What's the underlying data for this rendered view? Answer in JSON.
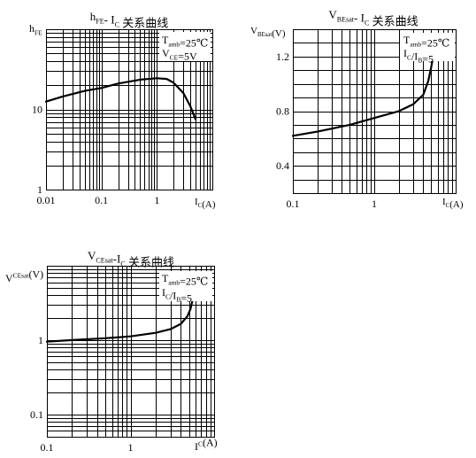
{
  "chart_data": [
    {
      "id": "hfe",
      "type": "line",
      "title_html": "h<sub>FE</sub>- I<sub>C</sub> 关系曲线",
      "title": "hFE- IC 关系曲线",
      "ylabel": "hFE",
      "xlabel": "IC(A)",
      "x_scale": "log",
      "y_scale": "log",
      "xlim": [
        0.01,
        10
      ],
      "ylim": [
        1,
        100
      ],
      "x_ticks": [
        0.01,
        0.1,
        1
      ],
      "x_tick_labels": [
        "0.01",
        "0.1",
        "1"
      ],
      "y_ticks": [
        1,
        10
      ],
      "y_tick_labels": [
        "1",
        "10"
      ],
      "annotations": [
        "Tamb=25℃",
        "VCE=5V"
      ],
      "series": [
        {
          "x": [
            0.01,
            0.02,
            0.05,
            0.1,
            0.2,
            0.5,
            1.0,
            1.5,
            2.0,
            3.0,
            4.0,
            5.0
          ],
          "y": [
            12.5,
            14.5,
            17.0,
            18.5,
            21.0,
            23.5,
            24.5,
            24.0,
            21.5,
            16.0,
            11.0,
            7.5
          ]
        }
      ],
      "grid": true
    },
    {
      "id": "vbesat",
      "type": "line",
      "title": "VBEsat- IC 关系曲线",
      "ylabel": "VBEsat(V)",
      "xlabel": "IC(A)",
      "x_scale": "log",
      "y_scale": "linear",
      "xlim": [
        0.1,
        10
      ],
      "ylim": [
        0.2,
        1.4
      ],
      "x_ticks": [
        0.1,
        1
      ],
      "x_tick_labels": [
        "0.1",
        "1"
      ],
      "y_ticks": [
        0.4,
        0.8,
        1.2
      ],
      "y_tick_labels": [
        "0.4",
        "0.8",
        "1.2"
      ],
      "annotations": [
        "Tamb=25℃",
        "IC/IB=5"
      ],
      "series": [
        {
          "x": [
            0.1,
            0.2,
            0.5,
            1.0,
            2.0,
            3.0,
            4.0,
            4.6,
            5.0,
            5.3,
            5.5
          ],
          "y": [
            0.62,
            0.65,
            0.7,
            0.75,
            0.8,
            0.85,
            0.92,
            1.02,
            1.12,
            1.2,
            1.25
          ]
        }
      ],
      "grid": true
    },
    {
      "id": "vcesat",
      "type": "line",
      "title": "VCEsat-IC 关系曲线",
      "ylabel": "VCEsat(V)",
      "xlabel": "IC(A)",
      "x_scale": "log",
      "y_scale": "log",
      "xlim": [
        0.1,
        10
      ],
      "ylim": [
        0.05,
        10
      ],
      "x_ticks": [
        0.1,
        1
      ],
      "x_tick_labels": [
        "0.1",
        "1"
      ],
      "y_ticks": [
        0.1,
        1
      ],
      "y_tick_labels": [
        "0.1",
        "1"
      ],
      "annotations": [
        "Tamb=25℃",
        "IC/IB=5"
      ],
      "series": [
        {
          "x": [
            0.1,
            0.2,
            0.5,
            1.0,
            2.0,
            3.0,
            4.0,
            4.8,
            5.2,
            5.5,
            5.7
          ],
          "y": [
            0.95,
            1.0,
            1.06,
            1.12,
            1.25,
            1.4,
            1.65,
            2.1,
            2.6,
            3.4,
            4.2
          ]
        }
      ],
      "grid": true
    }
  ]
}
